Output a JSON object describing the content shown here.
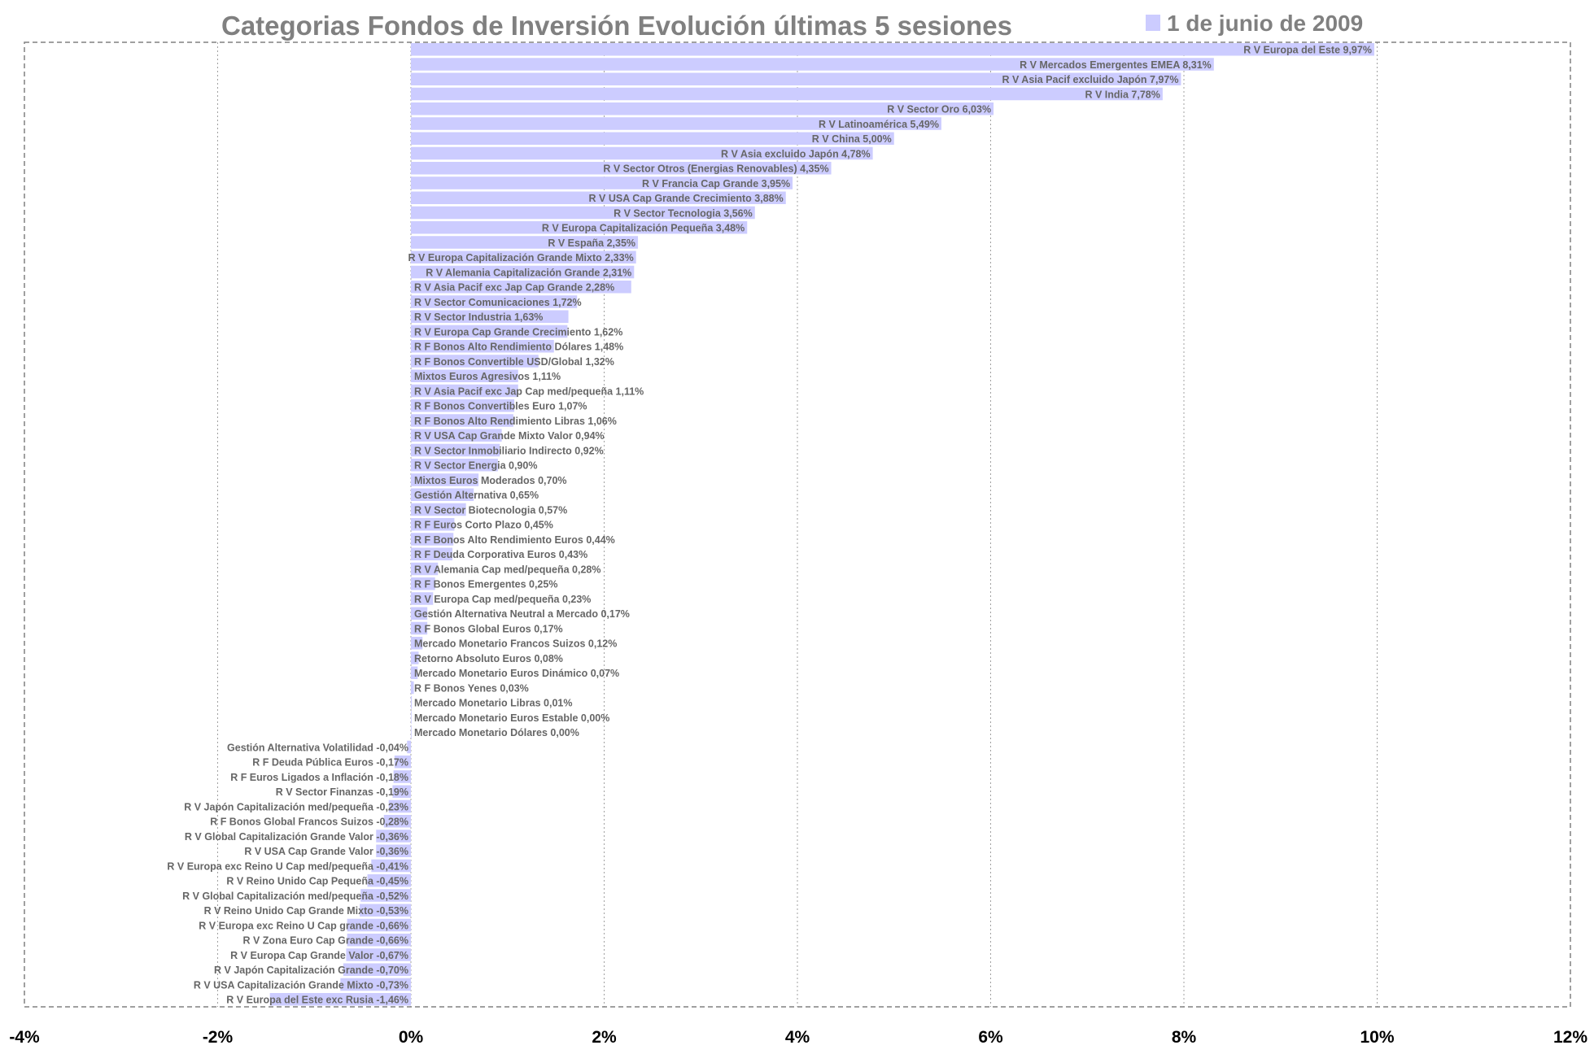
{
  "chart_data": {
    "type": "bar",
    "orientation": "horizontal",
    "title": "Categorias Fondos de Inversión Evolución últimas 5 sesiones",
    "legend": {
      "label": "1 de junio de 2009",
      "placement": "top-right",
      "color": "#ccccff"
    },
    "bar_color": "#ccccff",
    "xlim": [
      -4,
      12
    ],
    "x_ticks": [
      -4,
      -2,
      0,
      2,
      4,
      6,
      8,
      10,
      12
    ],
    "x_tick_labels": [
      "-4%",
      "-2%",
      "0%",
      "2%",
      "4%",
      "6%",
      "8%",
      "10%",
      "12%"
    ],
    "grid": "vertical-dotted",
    "bars": [
      {
        "label": "R V Europa del Este 9,97%",
        "value": 9.97
      },
      {
        "label": "R V Mercados Emergentes EMEA 8,31%",
        "value": 8.31
      },
      {
        "label": "R V Asia Pacif excluido Japón 7,97%",
        "value": 7.97
      },
      {
        "label": "R V India 7,78%",
        "value": 7.78
      },
      {
        "label": "R V Sector Oro 6,03%",
        "value": 6.03
      },
      {
        "label": "R V Latinoamérica 5,49%",
        "value": 5.49
      },
      {
        "label": "R V China 5,00%",
        "value": 5.0
      },
      {
        "label": "R V Asia excluido Japón 4,78%",
        "value": 4.78
      },
      {
        "label": "R V Sector Otros (Energias Renovables) 4,35%",
        "value": 4.35
      },
      {
        "label": "R V Francia Cap Grande 3,95%",
        "value": 3.95
      },
      {
        "label": "R V USA Cap Grande Crecimiento 3,88%",
        "value": 3.88
      },
      {
        "label": "R V Sector Tecnologia 3,56%",
        "value": 3.56
      },
      {
        "label": "R V Europa Capitalización Pequeña 3,48%",
        "value": 3.48
      },
      {
        "label": "R V España 2,35%",
        "value": 2.35
      },
      {
        "label": "R V Europa Capitalización Grande Mixto 2,33%",
        "value": 2.33
      },
      {
        "label": "R V Alemania Capitalización Grande 2,31%",
        "value": 2.31
      },
      {
        "label": "R V Asia Pacif exc Jap Cap Grande 2,28%",
        "value": 2.28
      },
      {
        "label": "R V Sector Comunicaciones 1,72%",
        "value": 1.72
      },
      {
        "label": "R V Sector Industria 1,63%",
        "value": 1.63
      },
      {
        "label": "R V Europa Cap Grande Crecimiento 1,62%",
        "value": 1.62
      },
      {
        "label": "R F Bonos Alto Rendimiento Dólares 1,48%",
        "value": 1.48
      },
      {
        "label": "R F Bonos Convertible USD/Global 1,32%",
        "value": 1.32
      },
      {
        "label": "Mixtos Euros Agresivos 1,11%",
        "value": 1.11
      },
      {
        "label": "R V Asia Pacif exc Jap Cap med/pequeña 1,11%",
        "value": 1.11
      },
      {
        "label": "R F Bonos Convertibles Euro 1,07%",
        "value": 1.07
      },
      {
        "label": "R F Bonos Alto Rendimiento Libras 1,06%",
        "value": 1.06
      },
      {
        "label": "R V USA Cap Grande Mixto Valor 0,94%",
        "value": 0.94
      },
      {
        "label": "R V Sector Inmobiliario Indirecto 0,92%",
        "value": 0.92
      },
      {
        "label": "R V Sector Energia 0,90%",
        "value": 0.9
      },
      {
        "label": "Mixtos Euros Moderados 0,70%",
        "value": 0.7
      },
      {
        "label": "Gestión Alternativa 0,65%",
        "value": 0.65
      },
      {
        "label": "R V Sector Biotecnologia 0,57%",
        "value": 0.57
      },
      {
        "label": "R F Euros Corto Plazo 0,45%",
        "value": 0.45
      },
      {
        "label": "R F Bonos Alto Rendimiento Euros 0,44%",
        "value": 0.44
      },
      {
        "label": "R F Deuda Corporativa Euros 0,43%",
        "value": 0.43
      },
      {
        "label": "R V Alemania Cap med/pequeña 0,28%",
        "value": 0.28
      },
      {
        "label": "R F Bonos Emergentes 0,25%",
        "value": 0.25
      },
      {
        "label": "R V Europa Cap med/pequeña 0,23%",
        "value": 0.23
      },
      {
        "label": "Gestión Alternativa Neutral a Mercado 0,17%",
        "value": 0.17
      },
      {
        "label": "R F Bonos Global Euros 0,17%",
        "value": 0.17
      },
      {
        "label": "Mercado Monetario Francos Suizos 0,12%",
        "value": 0.12
      },
      {
        "label": "Retorno Absoluto Euros 0,08%",
        "value": 0.08
      },
      {
        "label": "Mercado Monetario Euros Dinámico 0,07%",
        "value": 0.07
      },
      {
        "label": "R F Bonos Yenes 0,03%",
        "value": 0.03
      },
      {
        "label": "Mercado Monetario Libras 0,01%",
        "value": 0.01
      },
      {
        "label": "Mercado Monetario Euros Estable 0,00%",
        "value": 0.0
      },
      {
        "label": "Mercado Monetario Dólares 0,00%",
        "value": 0.0
      },
      {
        "label": "Gestión Alternativa Volatilidad -0,04%",
        "value": -0.04
      },
      {
        "label": "R F Deuda Pública Euros -0,17%",
        "value": -0.17
      },
      {
        "label": "R F Euros Ligados a Inflación -0,18%",
        "value": -0.18
      },
      {
        "label": "R V Sector Finanzas -0,19%",
        "value": -0.19
      },
      {
        "label": "R V Japón Capitalización med/pequeña -0,23%",
        "value": -0.23
      },
      {
        "label": "R F Bonos Global Francos Suizos -0,28%",
        "value": -0.28
      },
      {
        "label": "R V Global Capitalización Grande Valor -0,36%",
        "value": -0.36
      },
      {
        "label": "R V USA Cap Grande Valor -0,36%",
        "value": -0.36
      },
      {
        "label": "R V Europa exc Reino U Cap med/pequeña -0,41%",
        "value": -0.41
      },
      {
        "label": "R V Reino Unido Cap Pequeña -0,45%",
        "value": -0.45
      },
      {
        "label": "R V Global Capitalización med/pequeña -0,52%",
        "value": -0.52
      },
      {
        "label": "R V Reino Unido Cap Grande Mixto -0,53%",
        "value": -0.53
      },
      {
        "label": "R V Europa exc Reino U Cap grande -0,66%",
        "value": -0.66
      },
      {
        "label": "R V Zona Euro Cap Grande -0,66%",
        "value": -0.66
      },
      {
        "label": "R V Europa Cap Grande Valor -0,67%",
        "value": -0.67
      },
      {
        "label": "R V Japón Capitalización Grande -0,70%",
        "value": -0.7
      },
      {
        "label": "R V USA Capitalización Grande Mixto -0,73%",
        "value": -0.73
      },
      {
        "label": "R V Europa del Este exc Rusia -1,46%",
        "value": -1.46
      }
    ]
  }
}
